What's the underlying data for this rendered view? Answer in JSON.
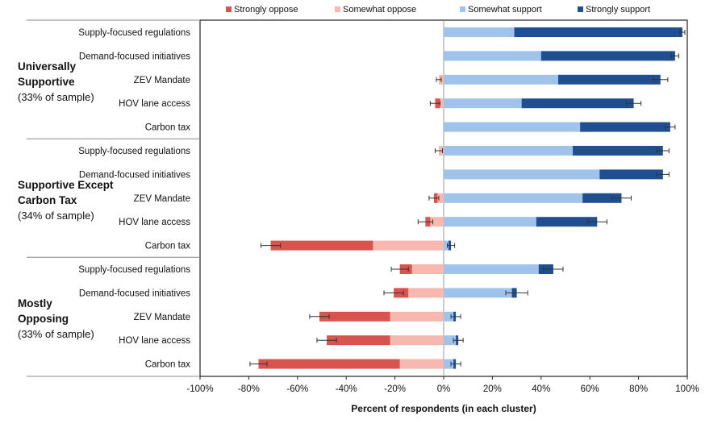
{
  "chart_data": {
    "type": "bar",
    "orientation": "horizontal",
    "stacked": "diverging",
    "xlabel": "Percent of respondents (in each cluster)",
    "xlim": [
      -100,
      100
    ],
    "xticks": [
      -100,
      -80,
      -60,
      -40,
      -20,
      0,
      20,
      40,
      60,
      80,
      100
    ],
    "tick_suffix": "%",
    "legend": {
      "placement": "top",
      "entries": [
        {
          "key": "so",
          "label": "Strongly oppose",
          "color": "#d9534f"
        },
        {
          "key": "mo",
          "label": "Somewhat oppose",
          "color": "#f7b8b0"
        },
        {
          "key": "ms",
          "label": "Somewhat support",
          "color": "#9fc3ea"
        },
        {
          "key": "ss",
          "label": "Strongly support",
          "color": "#1f4e91"
        }
      ]
    },
    "groups": [
      {
        "name_lines": [
          "Universally",
          "Supportive"
        ],
        "sample_note": "(33% of sample)",
        "rows": [
          {
            "label": "Supply-focused regulations",
            "so": 0,
            "mo": 0,
            "ms": 29,
            "ss": 69,
            "oppose_err": null,
            "support_err": 1
          },
          {
            "label": "Demand-focused initiatives",
            "so": 0,
            "mo": 0,
            "ms": 40,
            "ss": 55,
            "oppose_err": null,
            "support_err": 1.5
          },
          {
            "label": "ZEV Mandate",
            "so": 0,
            "mo": 2,
            "ms": 47,
            "ss": 42,
            "oppose_err": 1,
            "support_err": 3
          },
          {
            "label": "HOV lane access",
            "so": 2,
            "mo": 1.5,
            "ms": 32,
            "ss": 46,
            "oppose_err": 2,
            "support_err": 3
          },
          {
            "label": "Carbon tax",
            "so": 0,
            "mo": 0,
            "ms": 56,
            "ss": 37,
            "oppose_err": null,
            "support_err": 2
          }
        ]
      },
      {
        "name_lines": [
          "Supportive Except",
          "Carbon Tax"
        ],
        "sample_note": "(34% of sample)",
        "rows": [
          {
            "label": "Supply-focused regulations",
            "so": 0,
            "mo": 2,
            "ms": 53,
            "ss": 37,
            "oppose_err": 1.5,
            "support_err": 2.5
          },
          {
            "label": "Demand-focused initiatives",
            "so": 0,
            "mo": 0,
            "ms": 64,
            "ss": 26,
            "oppose_err": null,
            "support_err": 2.5
          },
          {
            "label": "ZEV Mandate",
            "so": 1.5,
            "mo": 2.5,
            "ms": 57,
            "ss": 16,
            "oppose_err": 2,
            "support_err": 4
          },
          {
            "label": "HOV lane access",
            "so": 2,
            "mo": 5.5,
            "ms": 38,
            "ss": 25,
            "oppose_err": 3,
            "support_err": 4
          },
          {
            "label": "Carbon tax",
            "so": 42,
            "mo": 29,
            "ms": 2,
            "ss": 1,
            "oppose_err": 4,
            "support_err": 1.5
          }
        ]
      },
      {
        "name_lines": [
          "Mostly",
          "Opposing"
        ],
        "sample_note": "(33% of sample)",
        "rows": [
          {
            "label": "Supply-focused regulations",
            "so": 5,
            "mo": 13,
            "ms": 39,
            "ss": 6,
            "oppose_err": 3.5,
            "support_err": 4
          },
          {
            "label": "Demand-focused initiatives",
            "so": 6,
            "mo": 14.5,
            "ms": 28,
            "ss": 2,
            "oppose_err": 4,
            "support_err": 4.5
          },
          {
            "label": "ZEV Mandate",
            "so": 29,
            "mo": 22,
            "ms": 4,
            "ss": 1,
            "oppose_err": 4,
            "support_err": 2
          },
          {
            "label": "HOV lane access",
            "so": 26,
            "mo": 22,
            "ms": 5,
            "ss": 1,
            "oppose_err": 4,
            "support_err": 2
          },
          {
            "label": "Carbon tax",
            "so": 58,
            "mo": 18,
            "ms": 4,
            "ss": 1,
            "oppose_err": 3.5,
            "support_err": 2
          }
        ]
      }
    ]
  }
}
